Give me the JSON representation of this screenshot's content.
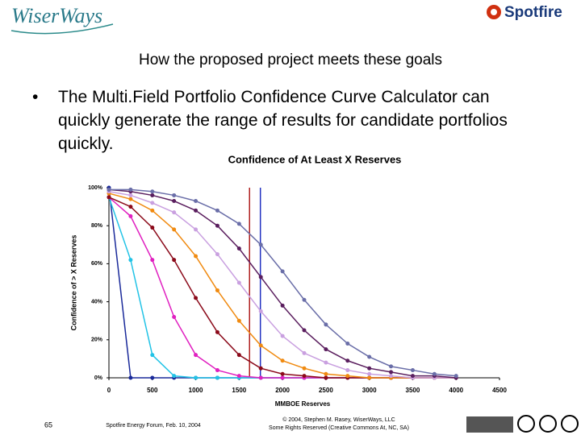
{
  "slide": {
    "logo_left": "WiserWays",
    "logo_right": "Spotfire",
    "heading": "How the proposed project meets these goals",
    "bullet": "The Multi.Field Portfolio Confidence Curve Calculator can quickly generate the range of results for candidate portfolios quickly.",
    "page_number": "65",
    "footer_left": "Spotfire Energy Forum, Feb. 10, 2004",
    "footer_center": [
      "© 2004, Stephen M. Rasey, WiserWays, LLC",
      "Some Rights Reserved (Creative Commons At, NC, SA)"
    ]
  },
  "chart_data": {
    "type": "line",
    "title": "Confidence of At Least X Reserves",
    "xlabel": "MMBOE Reserves",
    "ylabel": "Confidence of > X Reserves",
    "x": [
      0,
      250,
      500,
      750,
      1000,
      1250,
      1500,
      1750,
      2000,
      2250,
      2500,
      2750,
      3000,
      3250,
      3500,
      3750,
      4000
    ],
    "xlim": [
      0,
      4500
    ],
    "xticks": [
      0,
      500,
      1000,
      1500,
      2000,
      2500,
      3000,
      3500,
      4000,
      4500
    ],
    "ylim": [
      0,
      100
    ],
    "yticks": [
      {
        "value": 0,
        "label": "0%"
      },
      {
        "value": 20,
        "label": "20%"
      },
      {
        "value": 40,
        "label": "40%"
      },
      {
        "value": 60,
        "label": "60%"
      },
      {
        "value": 80,
        "label": "80%"
      },
      {
        "value": 100,
        "label": "100%"
      }
    ],
    "series": [
      {
        "color": "#1a2a9a",
        "values": [
          100,
          0,
          0,
          0,
          0,
          0,
          0,
          0,
          0,
          0,
          0,
          0,
          0,
          0,
          0,
          0,
          0
        ]
      },
      {
        "color": "#22c3e6",
        "values": [
          95,
          62,
          12,
          1,
          0,
          0,
          0,
          0,
          0,
          0,
          0,
          0,
          0,
          0,
          0,
          0,
          0
        ]
      },
      {
        "color": "#e020c0",
        "values": [
          95,
          85,
          62,
          32,
          12,
          4,
          1,
          0,
          0,
          0,
          0,
          0,
          0,
          0,
          0,
          0,
          0
        ]
      },
      {
        "color": "#8b0a1a",
        "values": [
          95,
          90,
          79,
          62,
          42,
          24,
          12,
          5,
          2,
          1,
          0,
          0,
          0,
          0,
          0,
          0,
          0
        ]
      },
      {
        "color": "#f08a10",
        "values": [
          97,
          94,
          88,
          78,
          64,
          46,
          30,
          17,
          9,
          5,
          2,
          1,
          0,
          0,
          0,
          0,
          0
        ]
      },
      {
        "color": "#c9a0e0",
        "values": [
          98,
          96,
          92,
          87,
          78,
          65,
          50,
          35,
          22,
          13,
          8,
          4,
          2,
          1,
          0,
          0,
          0
        ]
      },
      {
        "color": "#5a1e5e",
        "values": [
          99,
          98,
          96,
          93,
          88,
          80,
          68,
          53,
          38,
          25,
          15,
          9,
          5,
          3,
          1,
          1,
          0
        ]
      },
      {
        "color": "#6a6ea8",
        "values": [
          99,
          99,
          98,
          96,
          93,
          88,
          81,
          70,
          56,
          41,
          28,
          18,
          11,
          6,
          4,
          2,
          1
        ]
      }
    ],
    "vlines": [
      {
        "x": 1620,
        "color": "#b02020"
      },
      {
        "x": 1745,
        "color": "#2030c0"
      }
    ],
    "grid": false
  }
}
